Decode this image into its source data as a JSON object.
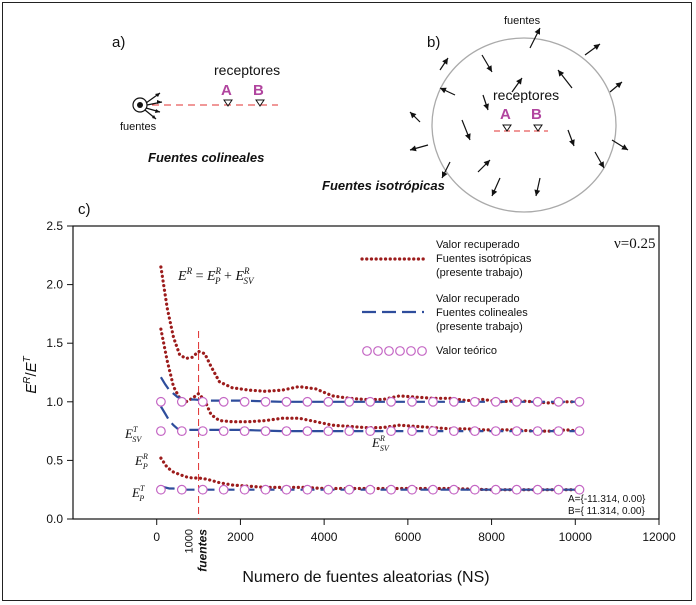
{
  "panel_a": {
    "label": "a)",
    "receptores": "receptores",
    "rec_A": "A",
    "rec_B": "B",
    "fuentes": "fuentes",
    "title": "Fuentes colineales"
  },
  "panel_b": {
    "label": "b)",
    "fuentes": "fuentes",
    "receptores": "receptores",
    "rec_A": "A",
    "rec_B": "B",
    "title": "Fuentes isotrópicas"
  },
  "panel_c_label": "c)",
  "nu_label": "ν=0.25",
  "equation": {
    "lhs": "E",
    "lhs_sup": "R",
    "eq": " = ",
    "p1": "E",
    "p1_sub": "P",
    "p1_sup": "R",
    "plus": " + ",
    "p2": "E",
    "p2_sub": "SV",
    "p2_sup": "R"
  },
  "side_labels": {
    "esvt": {
      "base": "E",
      "sub": "SV",
      "sup": "T"
    },
    "epr": {
      "base": "E",
      "sub": "P",
      "sup": "R"
    },
    "ept": {
      "base": "E",
      "sub": "P",
      "sup": "T"
    },
    "esvr": {
      "base": "E",
      "sub": "SV",
      "sup": "R"
    }
  },
  "fuentes_marker": {
    "x": 1000,
    "tick_label": "1000",
    "label": "fuentes"
  },
  "coords_text": {
    "a": "A={-11.314,   0.00}",
    "b": "B={ 11.314,   0.00}"
  },
  "legend": [
    {
      "text": "Valor recuperado\nFuentes isotrópicas\n(presente trabajo)",
      "style": "dotted",
      "color": "#9c1c1c"
    },
    {
      "text": "Valor recuperado\nFuentes colineales\n(presente trabajo)",
      "style": "dashed",
      "color": "#2e4d9c"
    },
    {
      "text": "Valor teórico",
      "style": "circles",
      "color": "#c466c4"
    }
  ],
  "colors": {
    "isotropic": "#9c1c1c",
    "collinear": "#2e4d9c",
    "theory": "#c466c4",
    "marker": "#e03030"
  },
  "chart_data": {
    "type": "line",
    "xlabel": "Numero de fuentes aleatorias (NS)",
    "ylabel": "E^R/E^T",
    "xlim": [
      -2000,
      12000
    ],
    "ylim": [
      0.0,
      2.5
    ],
    "xticks": [
      0,
      2000,
      4000,
      6000,
      8000,
      10000,
      12000
    ],
    "yticks": [
      0.0,
      0.5,
      1.0,
      1.5,
      2.0,
      2.5
    ],
    "series": [
      {
        "name": "Valor recuperado Fuentes isotrópicas (presente trabajo)",
        "style": "dotted",
        "curves": [
          {
            "x": [
              100,
              250,
              400,
              550,
              700,
              850,
              1000,
              1150,
              1300,
              1500,
              1800,
              2200,
              2600,
              3000,
              3400,
              3800,
              4200,
              4600,
              5000,
              5400,
              5800,
              6200,
              6600,
              7000,
              7400,
              7800,
              8200,
              8600,
              9000,
              9400,
              9800,
              10100
            ],
            "y": [
              2.15,
              1.8,
              1.55,
              1.4,
              1.37,
              1.38,
              1.43,
              1.41,
              1.3,
              1.17,
              1.12,
              1.1,
              1.09,
              1.1,
              1.13,
              1.11,
              1.05,
              1.03,
              1.02,
              1.02,
              1.05,
              1.04,
              1.03,
              1.03,
              1.01,
              1.02,
              1.0,
              1.01,
              1.0,
              0.99,
              1.0,
              1.0
            ]
          },
          {
            "x": [
              100,
              250,
              400,
              550,
              700,
              850,
              1000,
              1150,
              1300,
              1500,
              1800,
              2200,
              2600,
              3000,
              3400,
              3800,
              4200,
              4600,
              5000,
              5400,
              5800,
              6200,
              6600,
              7000,
              7400,
              7800,
              8200,
              8600,
              9000,
              9400,
              9800,
              10100
            ],
            "y": [
              1.62,
              1.35,
              1.13,
              1.03,
              1.0,
              1.03,
              1.07,
              1.01,
              0.89,
              0.84,
              0.83,
              0.83,
              0.84,
              0.86,
              0.86,
              0.83,
              0.8,
              0.79,
              0.78,
              0.78,
              0.8,
              0.79,
              0.78,
              0.77,
              0.77,
              0.76,
              0.76,
              0.76,
              0.75,
              0.75,
              0.76,
              0.75
            ]
          },
          {
            "x": [
              100,
              250,
              400,
              550,
              700,
              850,
              1000,
              1200,
              1500,
              1800,
              2200,
              2600,
              3000,
              3500,
              4000,
              5000,
              6000,
              7000,
              8000,
              9000,
              10100
            ],
            "y": [
              0.52,
              0.44,
              0.4,
              0.38,
              0.36,
              0.35,
              0.35,
              0.34,
              0.31,
              0.29,
              0.28,
              0.27,
              0.27,
              0.27,
              0.26,
              0.26,
              0.26,
              0.26,
              0.25,
              0.25,
              0.25
            ]
          }
        ]
      },
      {
        "name": "Valor recuperado Fuentes colineales (presente trabajo)",
        "style": "dashed",
        "curves": [
          {
            "x": [
              100,
              200,
              300,
              400,
              500,
              600,
              700,
              900,
              1200,
              1600,
              2000,
              3000,
              4000,
              5000,
              6000,
              7000,
              8000,
              9000,
              10100
            ],
            "y": [
              1.21,
              1.15,
              1.1,
              1.07,
              1.04,
              1.03,
              1.02,
              1.02,
              1.01,
              1.01,
              1.01,
              1.0,
              1.0,
              1.0,
              1.0,
              1.0,
              1.0,
              1.0,
              1.0
            ]
          },
          {
            "x": [
              100,
              200,
              300,
              400,
              500,
              600,
              700,
              900,
              1200,
              1600,
              2000,
              3000,
              4000,
              5000,
              6000,
              7000,
              8000,
              9000,
              10100
            ],
            "y": [
              0.96,
              0.9,
              0.84,
              0.8,
              0.77,
              0.76,
              0.76,
              0.76,
              0.76,
              0.76,
              0.76,
              0.75,
              0.75,
              0.75,
              0.75,
              0.75,
              0.75,
              0.75,
              0.75
            ]
          },
          {
            "x": [
              100,
              200,
              300,
              400,
              600,
              900,
              1200,
              1600,
              2000,
              3000,
              4000,
              5000,
              6000,
              7000,
              8000,
              9000,
              10100
            ],
            "y": [
              0.28,
              0.27,
              0.26,
              0.26,
              0.25,
              0.25,
              0.25,
              0.25,
              0.25,
              0.25,
              0.25,
              0.25,
              0.25,
              0.25,
              0.25,
              0.25,
              0.25
            ]
          }
        ]
      },
      {
        "name": "Valor teórico",
        "style": "circles",
        "curves": [
          {
            "x": [
              100,
              600,
              1100,
              1600,
              2100,
              2600,
              3100,
              3600,
              4100,
              4600,
              5100,
              5600,
              6100,
              6600,
              7100,
              7600,
              8100,
              8600,
              9100,
              9600,
              10100
            ],
            "y": [
              1.0,
              1.0,
              1.0,
              1.0,
              1.0,
              1.0,
              1.0,
              1.0,
              1.0,
              1.0,
              1.0,
              1.0,
              1.0,
              1.0,
              1.0,
              1.0,
              1.0,
              1.0,
              1.0,
              1.0,
              1.0
            ]
          },
          {
            "x": [
              100,
              600,
              1100,
              1600,
              2100,
              2600,
              3100,
              3600,
              4100,
              4600,
              5100,
              5600,
              6100,
              6600,
              7100,
              7600,
              8100,
              8600,
              9100,
              9600,
              10100
            ],
            "y": [
              0.75,
              0.75,
              0.75,
              0.75,
              0.75,
              0.75,
              0.75,
              0.75,
              0.75,
              0.75,
              0.75,
              0.75,
              0.75,
              0.75,
              0.75,
              0.75,
              0.75,
              0.75,
              0.75,
              0.75,
              0.75
            ]
          },
          {
            "x": [
              100,
              600,
              1100,
              1600,
              2100,
              2600,
              3100,
              3600,
              4100,
              4600,
              5100,
              5600,
              6100,
              6600,
              7100,
              7600,
              8100,
              8600,
              9100,
              9600,
              10100
            ],
            "y": [
              0.25,
              0.25,
              0.25,
              0.25,
              0.25,
              0.25,
              0.25,
              0.25,
              0.25,
              0.25,
              0.25,
              0.25,
              0.25,
              0.25,
              0.25,
              0.25,
              0.25,
              0.25,
              0.25,
              0.25,
              0.25
            ]
          }
        ]
      }
    ]
  }
}
